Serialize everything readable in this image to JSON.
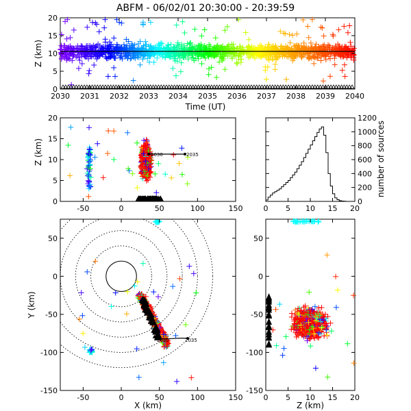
{
  "title": "ABFM - 06/02/01 20:30:00 - 20:39:59",
  "panels": {
    "time_height": {
      "ylabel": "Z (km)",
      "xlabel": "Time (UT)",
      "xticks": [
        "2030",
        "2031",
        "2032",
        "2033",
        "2034",
        "2035",
        "2036",
        "2037",
        "2038",
        "2039",
        "2040"
      ],
      "yticks": [
        "0",
        "5",
        "10",
        "15",
        "20"
      ]
    },
    "xz": {
      "ylabel": "Z (km)",
      "xticks": [
        "-50",
        "0",
        "50",
        "100",
        "150"
      ],
      "yticks": [
        "0",
        "5",
        "10",
        "15",
        "20"
      ],
      "annotations": [
        "2030",
        "2035"
      ]
    },
    "histogram": {
      "ylabel": "number of sources",
      "xticks": [
        "0",
        "5",
        "10",
        "15",
        "20"
      ],
      "yticks": [
        "0",
        "200",
        "400",
        "600",
        "800",
        "1000",
        "1200"
      ]
    },
    "xy": {
      "ylabel": "Y (km)",
      "xlabel": "X (km)",
      "xticks": [
        "-50",
        "0",
        "50",
        "100",
        "150"
      ],
      "yticks": [
        "-150",
        "-100",
        "-50",
        "0",
        "50"
      ],
      "annotations": [
        "2030",
        "2035"
      ]
    },
    "zy": {
      "xlabel": "Z (km)",
      "xticks": [
        "0",
        "5",
        "10",
        "15",
        "20"
      ],
      "yticks": [
        "-150",
        "-100",
        "-50",
        "0",
        "50"
      ]
    }
  },
  "chart_data": [
    {
      "type": "scatter",
      "panel": "time_height",
      "x_range": [
        2030,
        2040
      ],
      "y_range": [
        0,
        20
      ],
      "xlabel": "Time (UT)",
      "ylabel": "Z (km)",
      "color_by": "time",
      "colormap": [
        "#7f00ff",
        "#0000ff",
        "#00ffff",
        "#00ff00",
        "#ffff00",
        "#ff8000",
        "#ff0000"
      ],
      "density": "continuous",
      "core_z_range": [
        6,
        15
      ],
      "mean_line_z": 10.5
    },
    {
      "type": "scatter",
      "panel": "xz",
      "x_range": [
        -80,
        150
      ],
      "y_range": [
        0,
        20
      ],
      "ylabel": "Z (km)",
      "clusters": [
        {
          "x": [
            20,
            45
          ],
          "z": [
            2,
            18
          ],
          "dominant_color": "#ff0000"
        },
        {
          "x": [
            -48,
            -35
          ],
          "z": [
            3,
            13
          ],
          "dominant_color": "#0000ff"
        }
      ],
      "track_points": [
        {
          "label": "2030",
          "x": 38,
          "z": 10.5
        },
        {
          "label": "2035",
          "x": 73,
          "z": 10.5
        }
      ]
    },
    {
      "type": "bar",
      "panel": "histogram",
      "x_range": [
        0,
        20
      ],
      "y_range": [
        0,
        1200
      ],
      "ylabel": "number of sources",
      "bin_width": 0.5,
      "bin_starts": [
        0,
        0.5,
        1,
        1.5,
        2,
        2.5,
        3,
        3.5,
        4,
        4.5,
        5,
        5.5,
        6,
        6.5,
        7,
        7.5,
        8,
        8.5,
        9,
        9.5,
        10,
        10.5,
        11,
        11.5,
        12,
        12.5,
        13,
        13.5,
        14,
        14.5,
        15,
        15.5,
        16,
        16.5,
        17,
        17.5,
        18,
        18.5,
        19,
        19.5
      ],
      "values": [
        20,
        60,
        90,
        120,
        140,
        160,
        180,
        210,
        240,
        270,
        300,
        340,
        380,
        420,
        470,
        520,
        570,
        630,
        690,
        750,
        810,
        870,
        930,
        990,
        1040,
        1070,
        950,
        700,
        400,
        220,
        110,
        50,
        25,
        10,
        5,
        2,
        0,
        0,
        0,
        0
      ]
    },
    {
      "type": "scatter",
      "panel": "xy",
      "x_range": [
        -80,
        150
      ],
      "y_range": [
        -150,
        75
      ],
      "xlabel": "X (km)",
      "ylabel": "Y (km)",
      "range_rings_km": [
        20,
        40,
        60,
        80,
        100,
        120
      ],
      "ring_center": [
        0,
        0
      ],
      "clusters": [
        {
          "x": [
            25,
            65
          ],
          "y": [
            -95,
            -25
          ],
          "dominant_color": "#ff0000"
        },
        {
          "x": [
            -45,
            -35
          ],
          "y": [
            -105,
            -90
          ],
          "dominant_color": "#00ffff"
        },
        {
          "x": [
            40,
            55
          ],
          "y": [
            68,
            75
          ],
          "dominant_color": "#00ffff"
        }
      ],
      "track_points": [
        {
          "label": "2030",
          "x": 45,
          "y": -85
        },
        {
          "label": "2035",
          "x": 80,
          "y": -83
        }
      ]
    },
    {
      "type": "scatter",
      "panel": "zy",
      "x_range": [
        0,
        20
      ],
      "y_range": [
        -150,
        75
      ],
      "xlabel": "Z (km)",
      "clusters": [
        {
          "z": [
            3,
            18
          ],
          "y": [
            -95,
            -30
          ],
          "dominant_color": "#ff0000"
        },
        {
          "z": [
            6,
            12
          ],
          "y": [
            68,
            75
          ],
          "dominant_color": "#00ffff"
        }
      ]
    }
  ]
}
